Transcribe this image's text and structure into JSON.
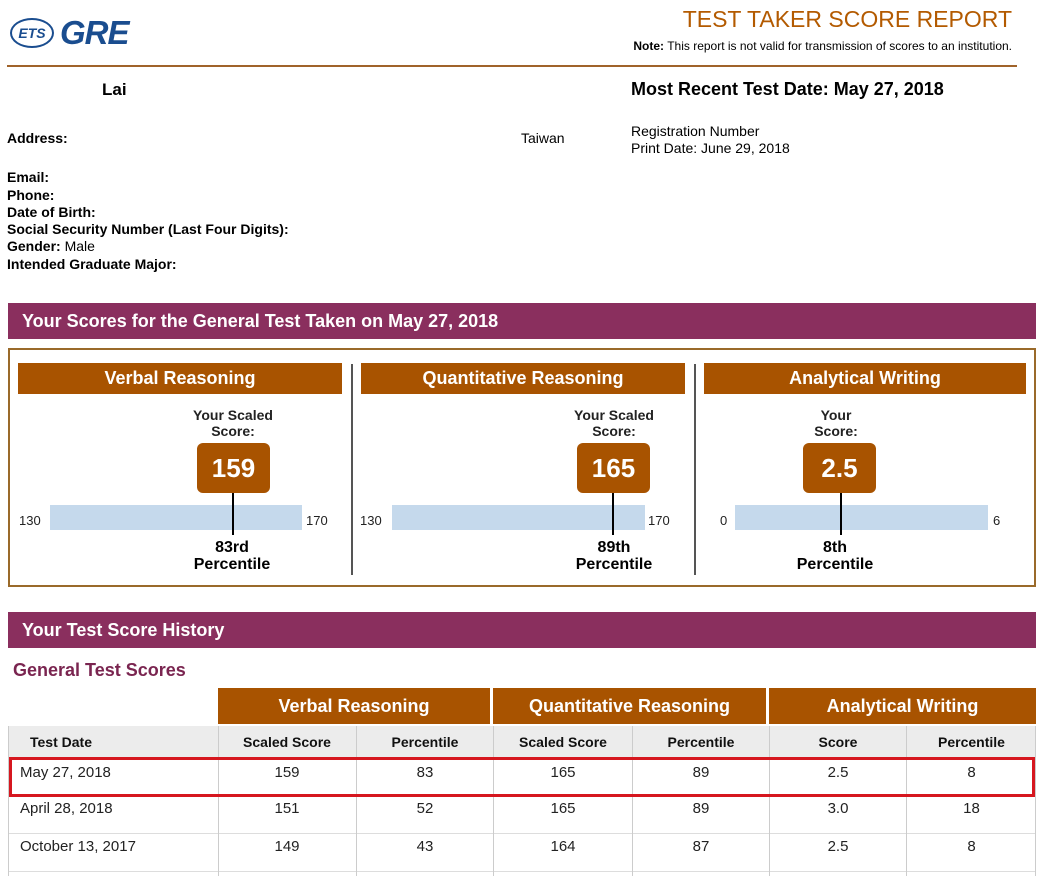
{
  "header": {
    "ets_logo": "ETS",
    "gre_logo": "GRE",
    "report_title": "TEST TAKER SCORE REPORT",
    "note_label": "Note:",
    "note_text": "This report is not valid for transmission of scores to an institution."
  },
  "candidate": {
    "name": "Lai",
    "most_recent_label": "Most Recent Test Date: May 27, 2018",
    "registration_label": "Registration Number",
    "print_date": "Print Date: June 29, 2018",
    "address_label": "Address:",
    "country": "Taiwan",
    "email_label": "Email:",
    "phone_label": "Phone:",
    "dob_label": "Date of Birth:",
    "ssn_label": "Social Security Number (Last Four Digits):",
    "gender_label": "Gender:",
    "gender_value": "Male",
    "major_label": "Intended Graduate Major:"
  },
  "scores_band": "Your Scores for the General Test Taken on May 27, 2018",
  "panels": [
    {
      "title": "Verbal Reasoning",
      "caption_line1": "Your Scaled",
      "caption_line2": "Score:",
      "score": "159",
      "min": "130",
      "max": "170",
      "score_fraction": 0.725,
      "percentile_line1": "83rd",
      "percentile_line2": "Percentile"
    },
    {
      "title": "Quantitative Reasoning",
      "caption_line1": "Your Scaled",
      "caption_line2": "Score:",
      "score": "165",
      "min": "130",
      "max": "170",
      "score_fraction": 0.875,
      "percentile_line1": "89th",
      "percentile_line2": "Percentile"
    },
    {
      "title": "Analytical Writing",
      "caption_line1": "Your",
      "caption_line2": "Score:",
      "score": "2.5",
      "min": "0",
      "max": "6",
      "score_fraction": 0.417,
      "percentile_line1": "8th",
      "percentile_line2": "Percentile"
    }
  ],
  "history_band": "Your Test Score History",
  "history_subtitle": "General Test Scores",
  "history_groups": [
    "Verbal Reasoning",
    "Quantitative Reasoning",
    "Analytical Writing"
  ],
  "history_columns": [
    "Test Date",
    "Scaled Score",
    "Percentile",
    "Scaled Score",
    "Percentile",
    "Score",
    "Percentile"
  ],
  "history_rows": [
    [
      "May 27, 2018",
      "159",
      "83",
      "165",
      "89",
      "2.5",
      "8"
    ],
    [
      "April 28, 2018",
      "151",
      "52",
      "165",
      "89",
      "3.0",
      "18"
    ],
    [
      "October 13, 2017",
      "149",
      "43",
      "164",
      "87",
      "2.5",
      "8"
    ]
  ]
}
